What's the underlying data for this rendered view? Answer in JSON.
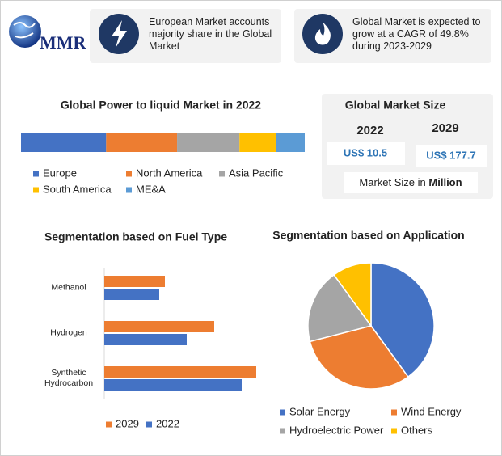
{
  "header": {
    "logo": "MMR",
    "notes": [
      "European Market accounts majority share in the Global Market",
      "Global Market is expected to grow at a CAGR of 49.8% during 2023-2029"
    ]
  },
  "market_size": {
    "title": "Global Market Size",
    "years": [
      "2022",
      "2029"
    ],
    "values": [
      "US$ 10.5",
      "US$ 177.7"
    ],
    "footer_text": "Market Size in",
    "footer_unit": "Million"
  },
  "chart_data": [
    {
      "type": "bar",
      "orientation": "horizontal",
      "stacked": true,
      "title": "Global Power to liquid Market in 2022",
      "xlim": [
        0,
        100
      ],
      "series": [
        {
          "name": "Europe",
          "color": "#4472c4",
          "values": [
            30
          ]
        },
        {
          "name": "North America",
          "color": "#ed7d31",
          "values": [
            25
          ]
        },
        {
          "name": "Asia Pacific",
          "color": "#a5a5a5",
          "values": [
            22
          ]
        },
        {
          "name": "South America",
          "color": "#ffc000",
          "values": [
            13
          ]
        },
        {
          "name": "ME&A",
          "color": "#5b9bd5",
          "values": [
            10
          ]
        }
      ]
    },
    {
      "type": "bar",
      "orientation": "horizontal",
      "stacked": false,
      "title": "Segmentation based on Fuel Type",
      "xlim": [
        0,
        200
      ],
      "categories": [
        "Methanol",
        "Hydrogen",
        "Synthetic Hydrocarbon"
      ],
      "series": [
        {
          "name": "2029",
          "color": "#ed7d31",
          "values": [
            75,
            136,
            188
          ]
        },
        {
          "name": "2022",
          "color": "#4472c4",
          "values": [
            68,
            102,
            170
          ]
        }
      ]
    },
    {
      "type": "pie",
      "title": "Segmentation based on Application",
      "categories": [
        "Solar Energy",
        "Wind Energy",
        "Hydroelectric Power",
        "Others"
      ],
      "colors": [
        "#4472c4",
        "#ed7d31",
        "#a5a5a5",
        "#ffc000"
      ],
      "values": [
        40,
        31,
        19,
        10
      ]
    }
  ]
}
